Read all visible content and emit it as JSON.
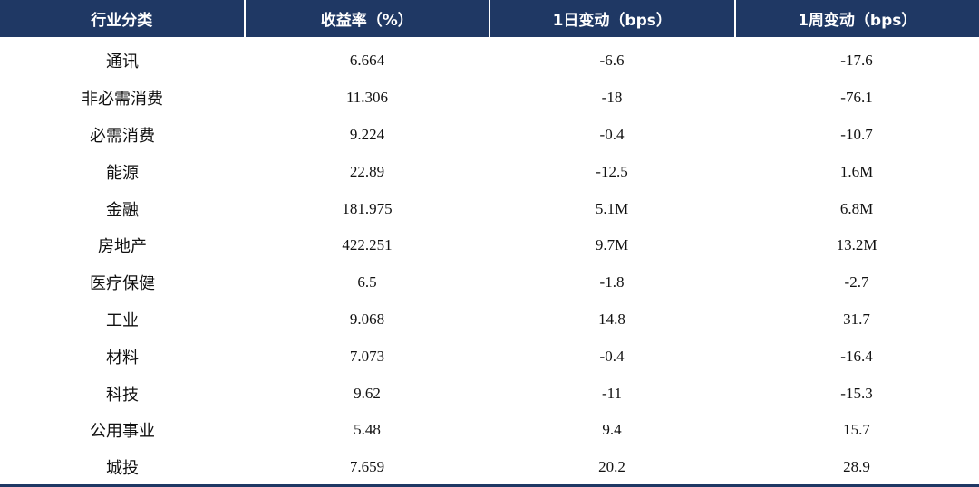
{
  "table": {
    "header": [
      "行业分类",
      "收益率（%）",
      "1日变动（bps）",
      "1周变动（bps）"
    ],
    "rows": [
      [
        "通讯",
        "6.664",
        "-6.6",
        "-17.6"
      ],
      [
        "非必需消费",
        "11.306",
        "-18",
        "-76.1"
      ],
      [
        "必需消费",
        "9.224",
        "-0.4",
        "-10.7"
      ],
      [
        "能源",
        "22.89",
        "-12.5",
        "1.6M"
      ],
      [
        "金融",
        "181.975",
        "5.1M",
        "6.8M"
      ],
      [
        "房地产",
        "422.251",
        "9.7M",
        "13.2M"
      ],
      [
        "医疗保健",
        "6.5",
        "-1.8",
        "-2.7"
      ],
      [
        "工业",
        "9.068",
        "14.8",
        "31.7"
      ],
      [
        "材料",
        "7.073",
        "-0.4",
        "-16.4"
      ],
      [
        "科技",
        "9.62",
        "-11",
        "-15.3"
      ],
      [
        "公用事业",
        "5.48",
        "9.4",
        "15.7"
      ],
      [
        "城投",
        "7.659",
        "20.2",
        "28.9"
      ]
    ]
  }
}
